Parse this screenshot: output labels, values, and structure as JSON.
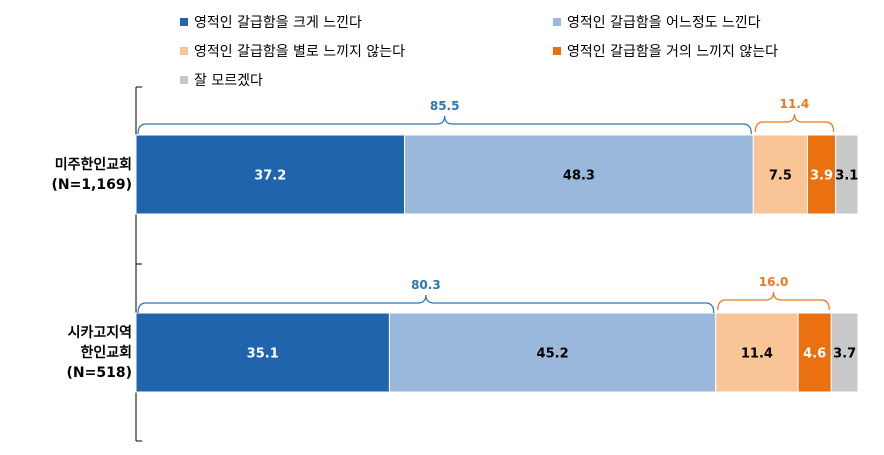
{
  "chart_data": {
    "type": "bar",
    "orientation": "horizontal",
    "stacked": true,
    "title": "",
    "xlabel": "",
    "ylabel": "",
    "xlim": [
      0,
      100
    ],
    "grid": false,
    "legend_position": "top",
    "categories": [
      {
        "label_lines": [
          "미주한인교회",
          "(N=1,169)"
        ]
      },
      {
        "label_lines": [
          "시카고지역",
          "한인교회",
          "(N=518)"
        ]
      }
    ],
    "series": [
      {
        "name": "영적인 갈급함을 크게 느낀다",
        "color": "#1f64ad",
        "label_color": "#ffffff",
        "values": [
          37.2,
          35.1
        ],
        "value_labels": [
          "37.2",
          "35.1"
        ]
      },
      {
        "name": "영적인 갈급함을 어느정도 느낀다",
        "color": "#9ab8db",
        "label_color": "#000000",
        "values": [
          48.3,
          45.2
        ],
        "value_labels": [
          "48.3",
          "45.2"
        ]
      },
      {
        "name": "영적인 갈급함을 별로 느끼지 않는다",
        "color": "#f9c596",
        "label_color": "#000000",
        "values": [
          7.5,
          11.4
        ],
        "value_labels": [
          "7.5",
          "11.4"
        ]
      },
      {
        "name": "영적인 갈급함을 거의 느끼지 않는다",
        "color": "#eb700f",
        "label_color": "#ffffff",
        "values": [
          3.9,
          4.6
        ],
        "value_labels": [
          "3.9",
          "4.6"
        ]
      },
      {
        "name": "잘 모르겠다",
        "color": "#c8c8c8",
        "label_color": "#000000",
        "values": [
          3.1,
          3.7
        ],
        "value_labels": [
          "3.1",
          "3.7"
        ]
      }
    ],
    "annotations": [
      {
        "row": 0,
        "from_series": 0,
        "to_series": 1,
        "label": "85.5",
        "color": "#2e75b6"
      },
      {
        "row": 0,
        "from_series": 2,
        "to_series": 3,
        "label": "11.4",
        "color": "#e87722"
      },
      {
        "row": 1,
        "from_series": 0,
        "to_series": 1,
        "label": "80.3",
        "color": "#2e75b6"
      },
      {
        "row": 1,
        "from_series": 2,
        "to_series": 3,
        "label": "16.0",
        "color": "#e87722"
      }
    ]
  }
}
